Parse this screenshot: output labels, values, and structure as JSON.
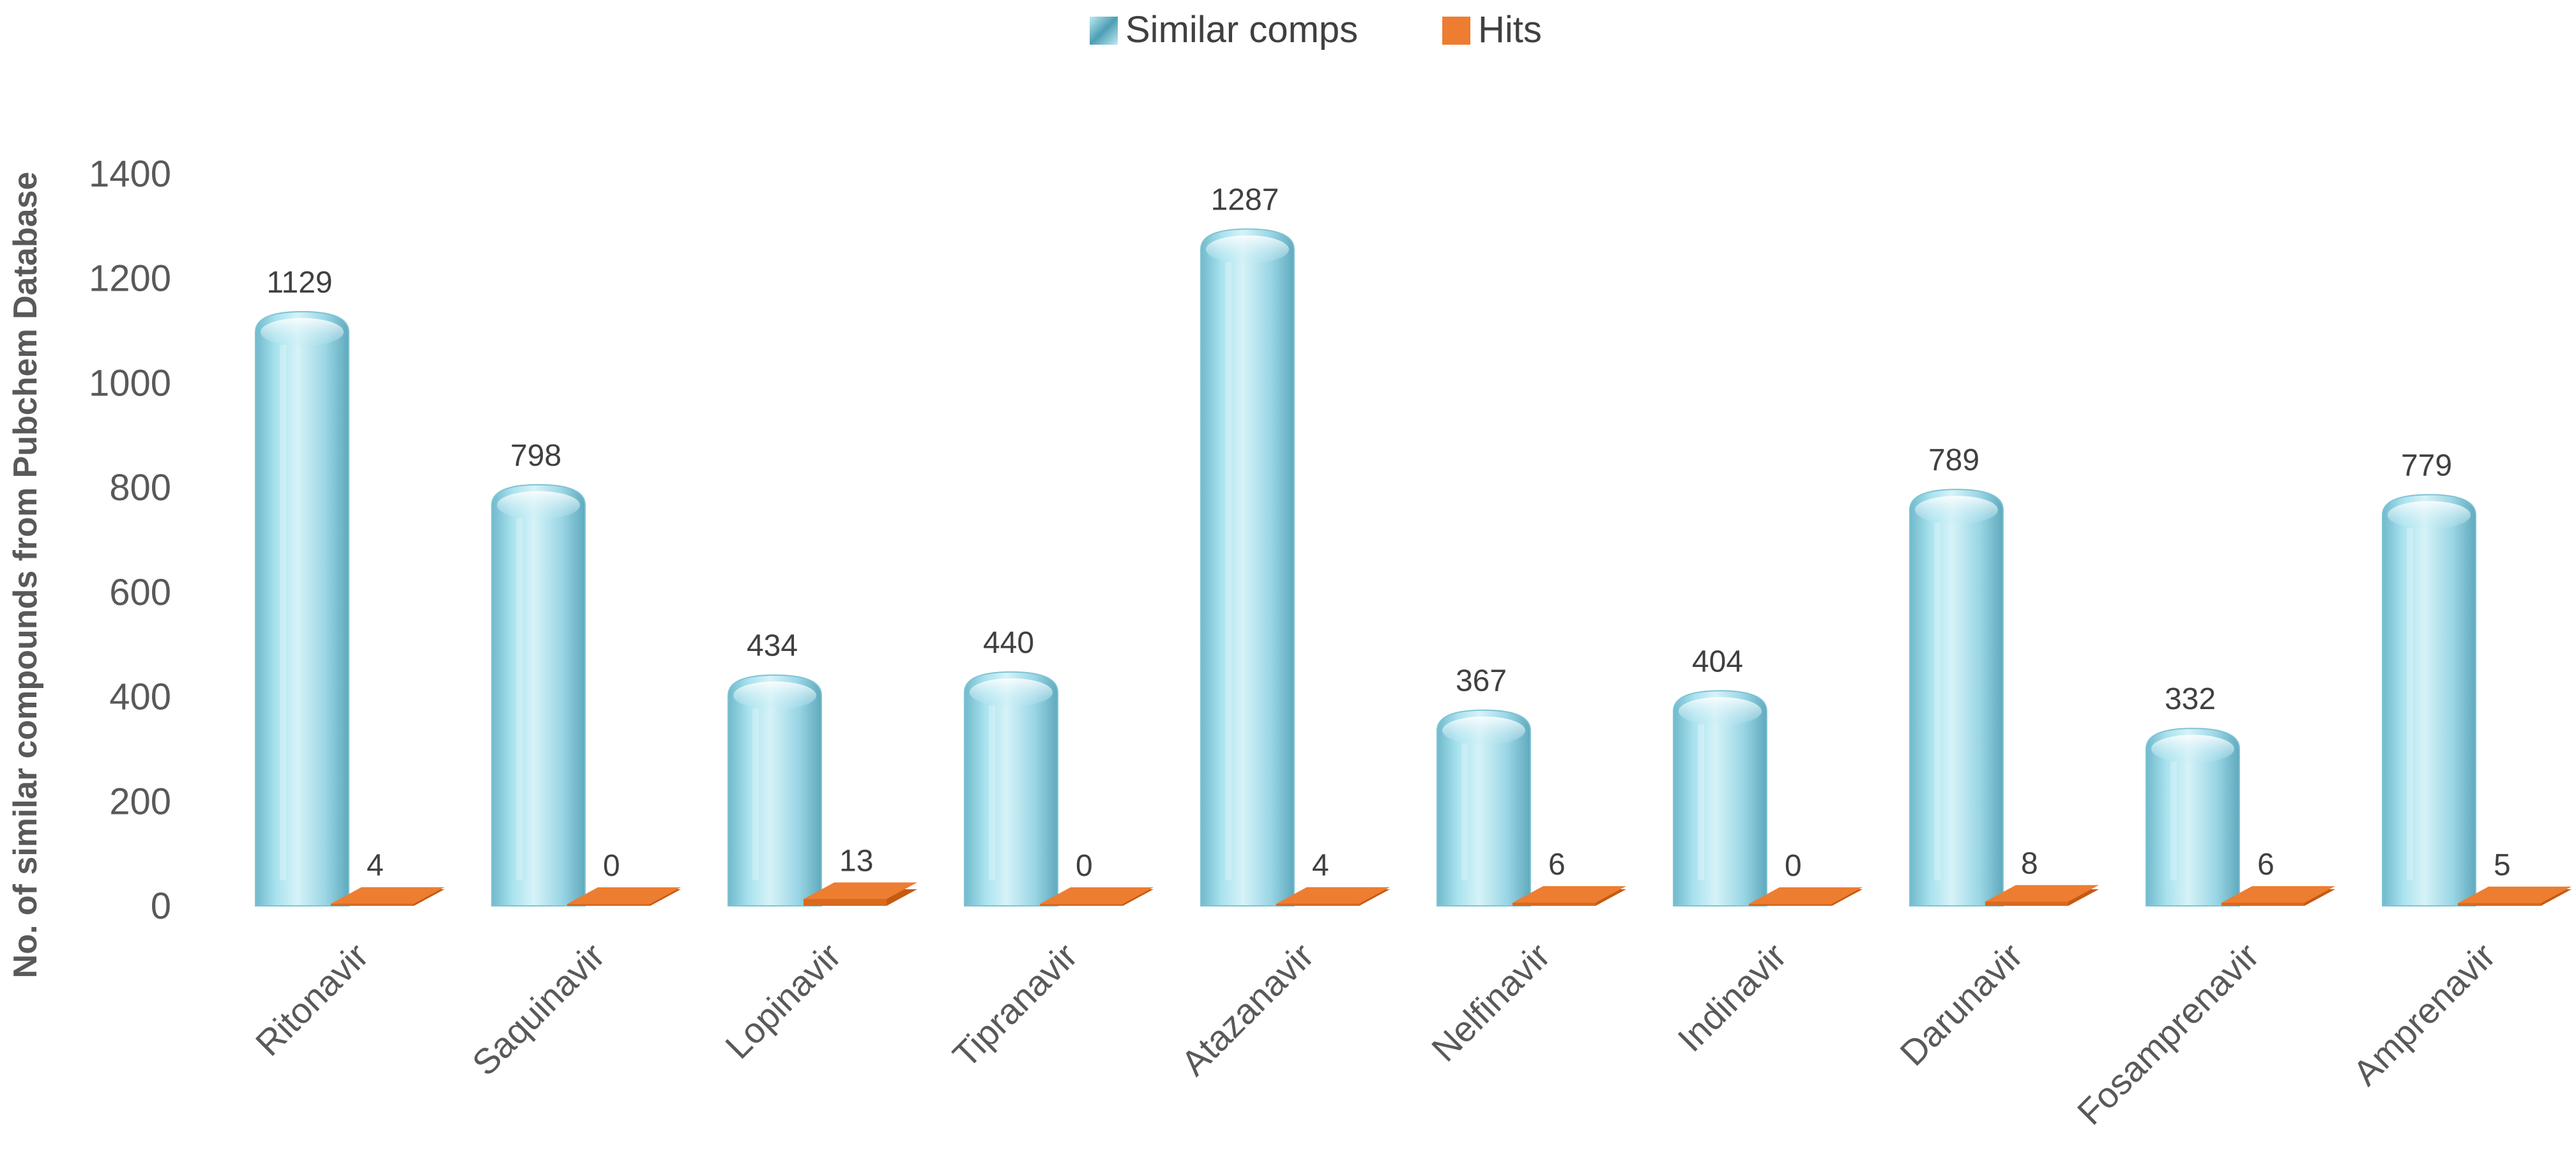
{
  "chart_data": {
    "type": "bar",
    "style": "3d-cylinder",
    "title": "",
    "xlabel": "",
    "ylabel": "No. of similar compounds from Pubchem Database",
    "ylim": [
      0,
      1400
    ],
    "yticks": [
      0,
      200,
      400,
      600,
      800,
      1000,
      1200,
      1400
    ],
    "grid": false,
    "legend_position": "top-center",
    "categories": [
      "Ritonavir",
      "Saquinavir",
      "Lopinavir",
      "Tipranavir",
      "Atazanavir",
      "Nelfinavir",
      "Indinavir",
      "Darunavir",
      "Fosamprenavir",
      "Amprenavir"
    ],
    "series": [
      {
        "name": "Similar comps",
        "color": "#8fd3e4",
        "values": [
          1129,
          798,
          434,
          440,
          1287,
          367,
          404,
          789,
          332,
          779
        ]
      },
      {
        "name": "Hits",
        "color": "#ed7d31",
        "values": [
          4,
          0,
          13,
          0,
          4,
          6,
          0,
          8,
          6,
          5
        ]
      }
    ]
  }
}
